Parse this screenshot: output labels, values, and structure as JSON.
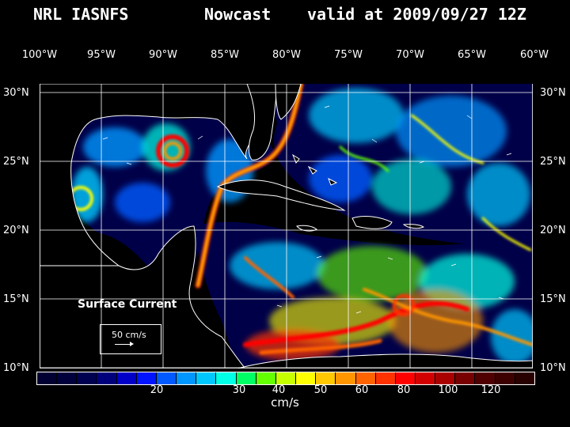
{
  "title": {
    "model": "NRL IASNFS",
    "product": "Nowcast",
    "valid": "valid at 2009/09/27 12Z"
  },
  "axes": {
    "lon_labels": [
      "100°W",
      "95°W",
      "90°W",
      "85°W",
      "80°W",
      "75°W",
      "70°W",
      "65°W",
      "60°W"
    ],
    "lat_labels": [
      "30°N",
      "25°N",
      "20°N",
      "15°N",
      "10°N"
    ]
  },
  "overlay": {
    "surface_label": "Surface Current",
    "reference_vector": "50 cm/s"
  },
  "legend": {
    "units": "cm/s",
    "tick_labels": [
      "20",
      "30",
      "40",
      "50",
      "60",
      "80",
      "100",
      "120"
    ],
    "colors": [
      "#000033",
      "#00003c",
      "#000050",
      "#00007d",
      "#0000c8",
      "#0014ff",
      "#005aff",
      "#0096ff",
      "#00c8ff",
      "#00ffe6",
      "#00ff64",
      "#64ff00",
      "#c8ff00",
      "#ffff00",
      "#ffc800",
      "#ff9600",
      "#ff6400",
      "#ff3200",
      "#ff0000",
      "#d20000",
      "#aa0000",
      "#780000",
      "#500000",
      "#3c0000",
      "#280000"
    ]
  },
  "colors": {
    "ocean_base": "#000040",
    "land": "#000000",
    "coast": "#ffffff"
  }
}
